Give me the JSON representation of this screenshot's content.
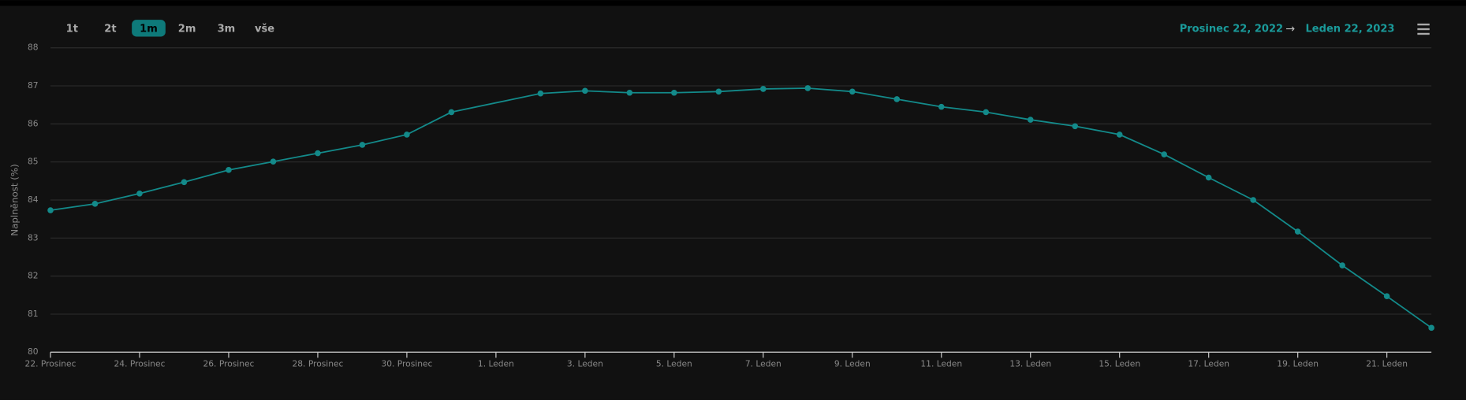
{
  "toolbar": {
    "buttons": [
      "1t",
      "2t",
      "1m",
      "2m",
      "3m",
      "vše"
    ],
    "active_button": 2
  },
  "range": {
    "from": "Prosinec 22, 2022",
    "arrow": "→",
    "to": "Leden 22, 2023"
  },
  "chart_data": {
    "type": "line",
    "y_label": "Naplněnost (%)",
    "color": "#138a8a",
    "grid": true,
    "x": [
      "2022-12-22",
      "2022-12-23",
      "2022-12-24",
      "2022-12-25",
      "2022-12-26",
      "2022-12-27",
      "2022-12-28",
      "2022-12-29",
      "2022-12-30",
      "2022-12-31",
      "2023-01-02",
      "2023-01-03",
      "2023-01-04",
      "2023-01-05",
      "2023-01-06",
      "2023-01-07",
      "2023-01-08",
      "2023-01-09",
      "2023-01-10",
      "2023-01-11",
      "2023-01-12",
      "2023-01-13",
      "2023-01-14",
      "2023-01-15",
      "2023-01-16",
      "2023-01-17",
      "2023-01-18",
      "2023-01-19",
      "2023-01-20",
      "2023-01-21",
      "2023-01-22"
    ],
    "values": [
      83.73,
      83.9,
      84.17,
      84.47,
      84.79,
      85.01,
      85.23,
      85.45,
      85.72,
      86.31,
      86.8,
      86.87,
      86.82,
      86.82,
      86.85,
      86.92,
      86.94,
      86.85,
      86.65,
      86.45,
      86.31,
      86.11,
      85.94,
      85.72,
      85.2,
      84.59,
      84.0,
      83.17,
      82.28,
      81.47,
      80.64
    ],
    "xlim": [
      "2022-12-22",
      "2023-01-22"
    ],
    "xticks": [
      {
        "value": "2022-12-22",
        "label": "22. Prosinec"
      },
      {
        "value": "2022-12-24",
        "label": "24. Prosinec"
      },
      {
        "value": "2022-12-26",
        "label": "26. Prosinec"
      },
      {
        "value": "2022-12-28",
        "label": "28. Prosinec"
      },
      {
        "value": "2022-12-30",
        "label": "30. Prosinec"
      },
      {
        "value": "2023-01-01",
        "label": "1. Leden"
      },
      {
        "value": "2023-01-03",
        "label": "3. Leden"
      },
      {
        "value": "2023-01-05",
        "label": "5. Leden"
      },
      {
        "value": "2023-01-07",
        "label": "7. Leden"
      },
      {
        "value": "2023-01-09",
        "label": "9. Leden"
      },
      {
        "value": "2023-01-11",
        "label": "11. Leden"
      },
      {
        "value": "2023-01-13",
        "label": "13. Leden"
      },
      {
        "value": "2023-01-15",
        "label": "15. Leden"
      },
      {
        "value": "2023-01-17",
        "label": "17. Leden"
      },
      {
        "value": "2023-01-19",
        "label": "19. Leden"
      },
      {
        "value": "2023-01-21",
        "label": "21. Leden"
      }
    ],
    "ylim": [
      80,
      88
    ],
    "yticks": [
      80,
      81,
      82,
      83,
      84,
      85,
      86,
      87,
      88
    ]
  }
}
